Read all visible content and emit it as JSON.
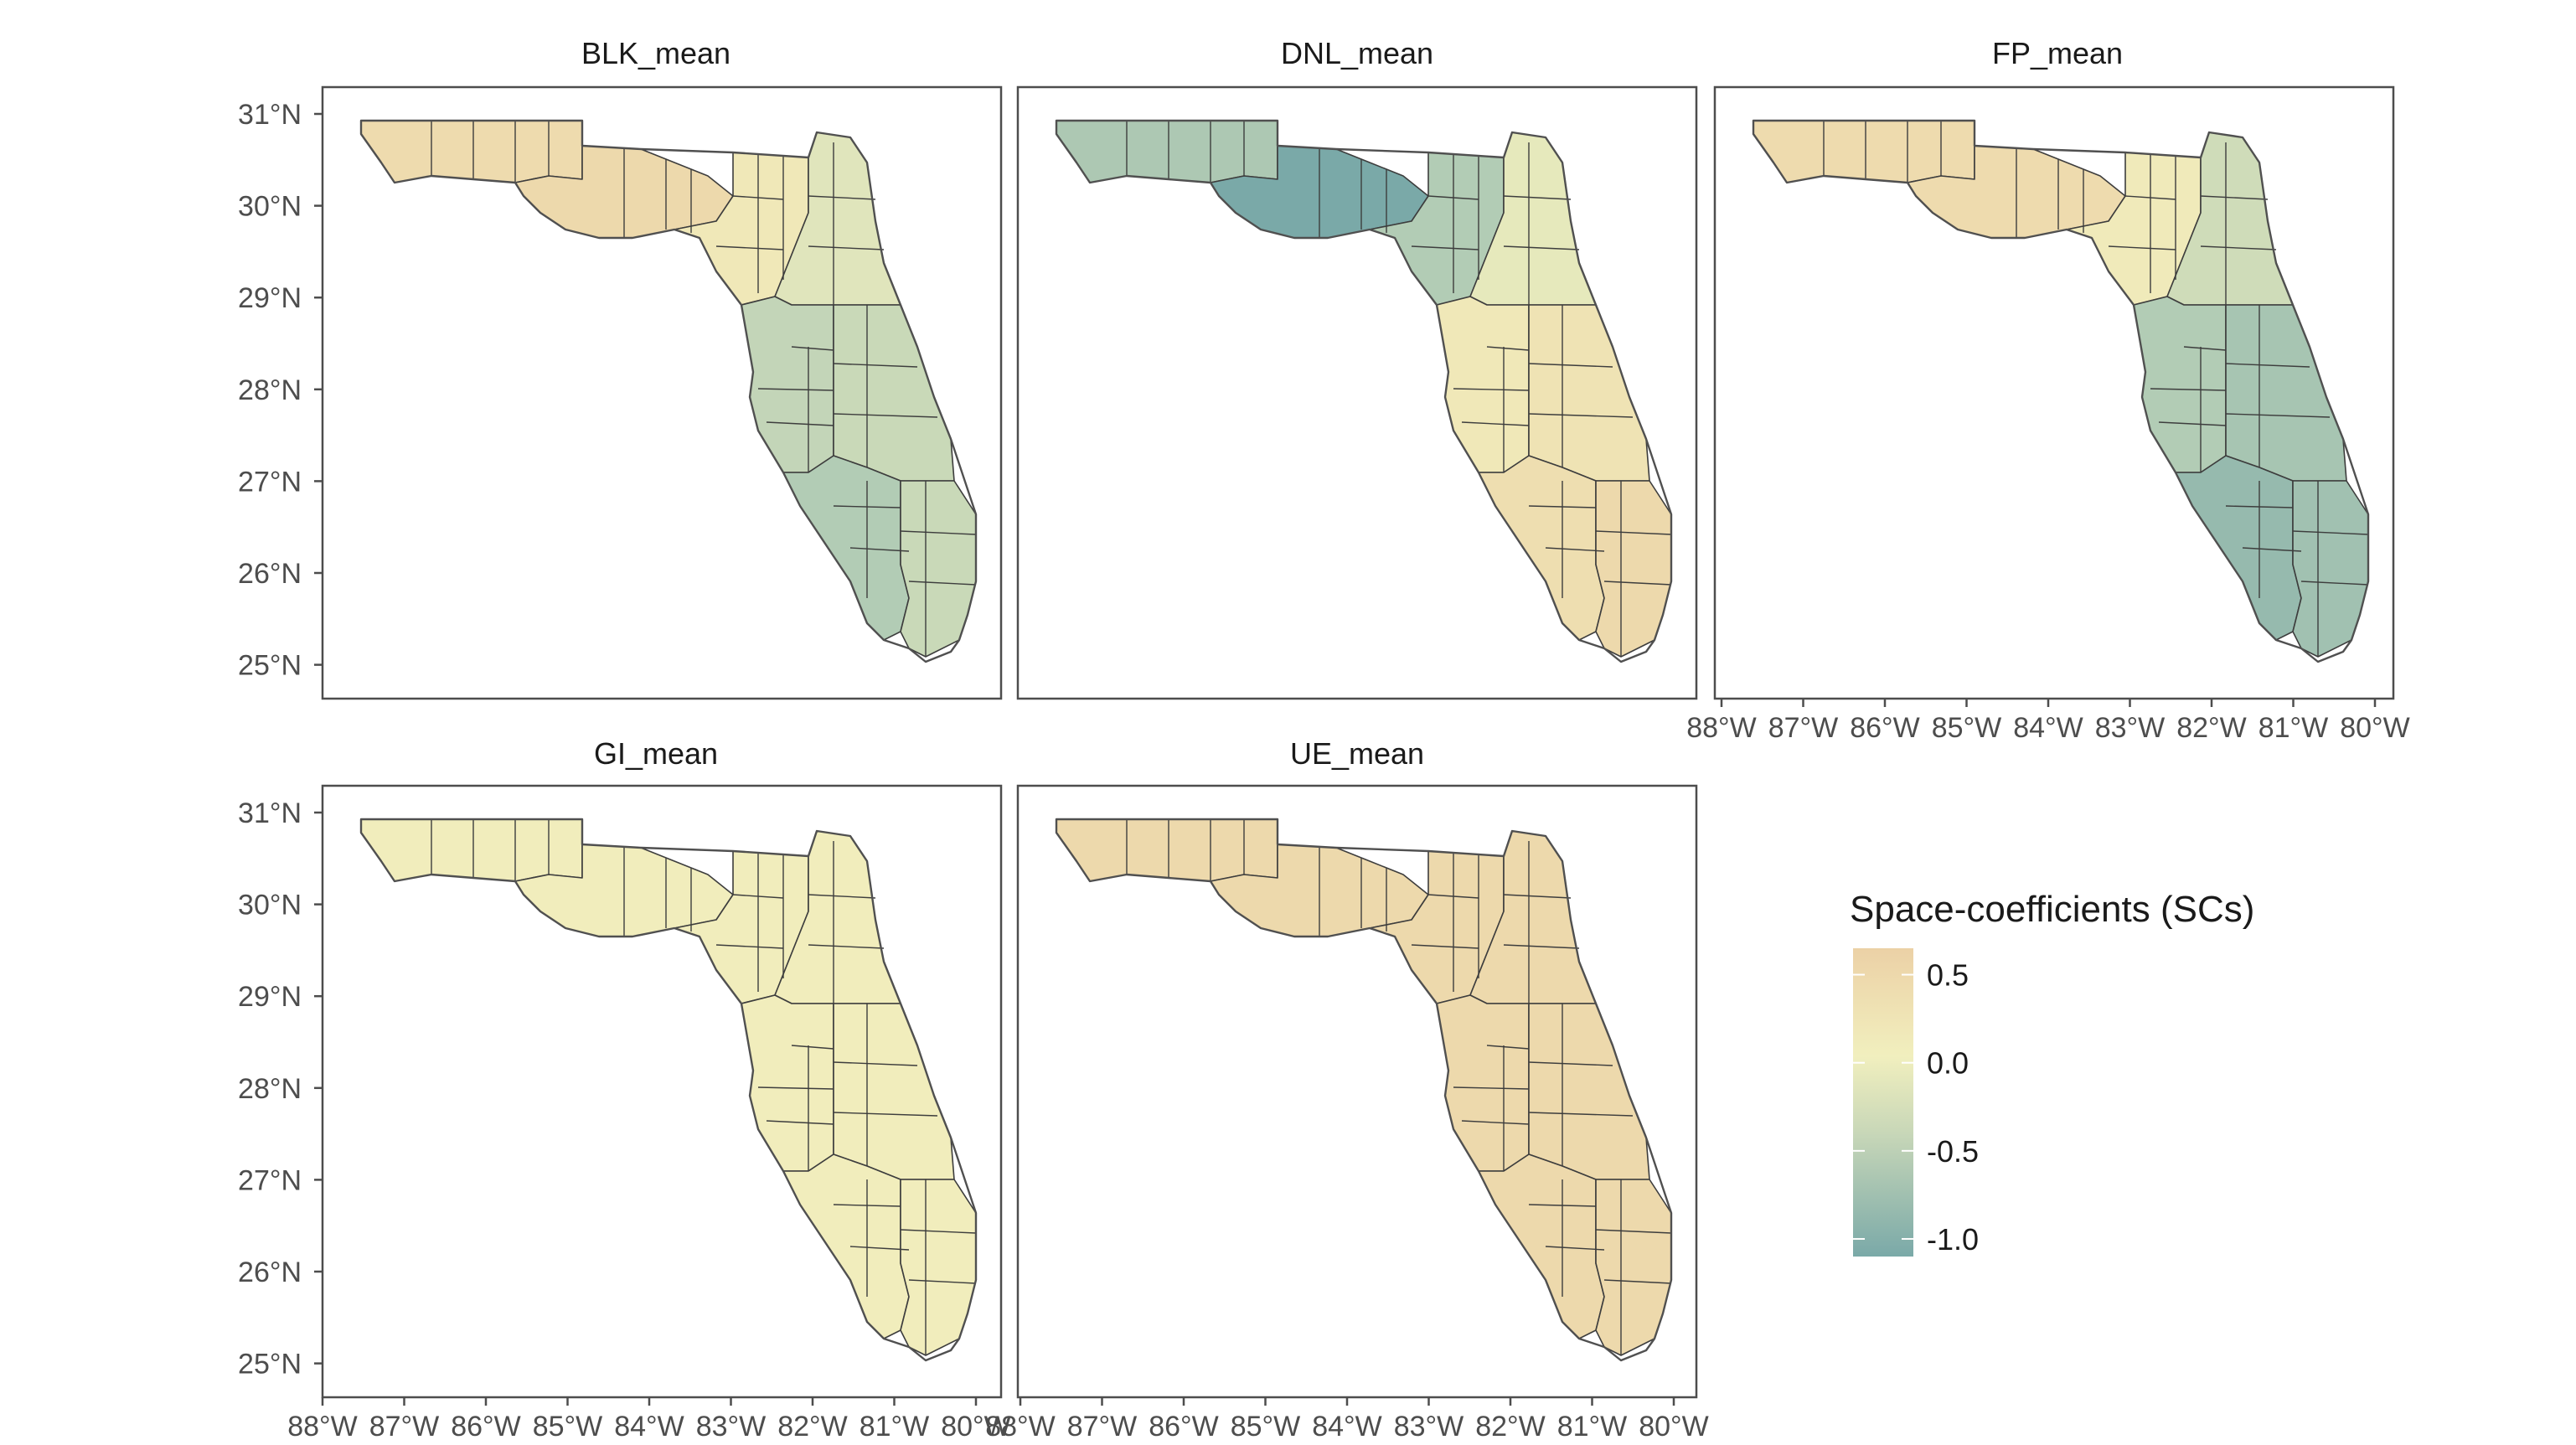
{
  "panels": [
    {
      "title": "BLK_mean",
      "regions": {
        "panhandle_west": 0.4,
        "panhandle_central": 0.45,
        "big_bend": 0.15,
        "north_east": -0.15,
        "central_west": -0.4,
        "central_east": -0.35,
        "south_west": -0.55,
        "south_east": -0.35
      }
    },
    {
      "title": "DNL_mean",
      "regions": {
        "panhandle_west": -0.6,
        "panhandle_central": -1.05,
        "big_bend": -0.55,
        "north_east": -0.1,
        "central_west": 0.15,
        "central_east": 0.25,
        "south_west": 0.35,
        "south_east": 0.45
      }
    },
    {
      "title": "FP_mean",
      "regions": {
        "panhandle_west": 0.4,
        "panhandle_central": 0.4,
        "big_bend": 0.1,
        "north_east": -0.3,
        "central_west": -0.55,
        "central_east": -0.65,
        "south_west": -0.8,
        "south_east": -0.7
      }
    },
    {
      "title": "GI_mean",
      "regions": {
        "panhandle_west": 0.05,
        "panhandle_central": 0.05,
        "big_bend": 0.05,
        "north_east": 0.05,
        "central_west": 0.05,
        "central_east": 0.05,
        "south_west": 0.05,
        "south_east": 0.05
      }
    },
    {
      "title": "UE_mean",
      "regions": {
        "panhandle_west": 0.45,
        "panhandle_central": 0.45,
        "big_bend": 0.45,
        "north_east": 0.45,
        "central_west": 0.45,
        "central_east": 0.45,
        "south_west": 0.45,
        "south_east": 0.45
      }
    }
  ],
  "axes": {
    "y_ticks": [
      "31°N",
      "30°N",
      "29°N",
      "28°N",
      "27°N",
      "26°N",
      "25°N"
    ],
    "x_ticks": [
      "88°W",
      "87°W",
      "86°W",
      "85°W",
      "84°W",
      "83°W",
      "82°W",
      "81°W",
      "80°W"
    ]
  },
  "legend": {
    "title": "Space-coefficients (SCs)",
    "labels": [
      "0.5",
      "0.0",
      "-0.5",
      "-1.0"
    ],
    "values": [
      0.5,
      0.0,
      -0.5,
      -1.0
    ],
    "range": [
      -1.1,
      0.65
    ],
    "colors": {
      "high": "#ecd1a6",
      "mid": "#f1efbe",
      "low_mid": "#b8cfb6",
      "low": "#7aa9a8"
    }
  }
}
